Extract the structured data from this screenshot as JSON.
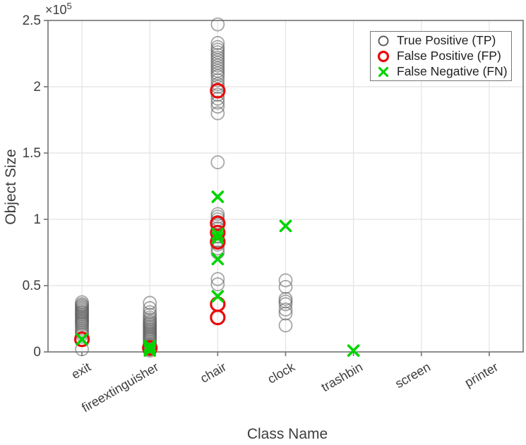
{
  "figure": {
    "background": "#ffffff",
    "exponent_base": "×10",
    "exponent_power": "5"
  },
  "chart_data": {
    "type": "scatter",
    "title": "",
    "xlabel": "Class Name",
    "ylabel": "Object Size",
    "y_axis_exponent_label": "×10^5",
    "ylim": [
      0,
      250000
    ],
    "y_tick_values": [
      0,
      50000,
      100000,
      150000,
      200000,
      250000
    ],
    "y_tick_labels": [
      "0",
      "0.5",
      "1",
      "1.5",
      "2",
      "2.5"
    ],
    "grid": true,
    "legend_position": "top-right",
    "axis_color": "#7a7a7a",
    "grid_color": "#e2e2e2",
    "tick_label_color": "#3d3d3d",
    "categories": [
      "exit",
      "fireextinguisher",
      "chair",
      "clock",
      "trashbin",
      "screen",
      "printer"
    ],
    "series": [
      {
        "name": "True Positive (TP)",
        "marker": "circle-open",
        "color": "#5f5f5f",
        "opacity": 0.55,
        "radius": 9,
        "stroke_width": 1.8,
        "values_by_category": [
          [
            37500,
            36000,
            35000,
            34000,
            33000,
            32000,
            31000,
            30000,
            29500,
            28500,
            27500,
            26500,
            25500,
            24500,
            23500,
            22500,
            21500,
            20500,
            19000,
            17500,
            16000,
            14500,
            13000,
            2000
          ],
          [
            37000,
            33000,
            30000,
            28000,
            26000,
            24500,
            23000,
            22000,
            21000,
            20000,
            19000,
            18000,
            17000,
            16000,
            15000,
            14000,
            13000,
            12000,
            11000,
            10000,
            9000,
            7500,
            6000,
            5000,
            4000,
            3000,
            2000,
            1000
          ],
          [
            247000,
            233000,
            230000,
            228000,
            226000,
            224000,
            222000,
            220000,
            218000,
            216000,
            214000,
            212000,
            210000,
            208000,
            205000,
            202000,
            200000,
            197000,
            194000,
            191000,
            188000,
            185000,
            180000,
            143000,
            104000,
            102000,
            100000,
            98000,
            96000,
            93000,
            90000,
            87000,
            84000,
            81000,
            78000,
            75000,
            55000,
            51000
          ],
          [
            54000,
            49000,
            40000,
            38000,
            36000,
            32000,
            29000,
            20000
          ],
          [],
          [],
          []
        ]
      },
      {
        "name": "False Positive (FP)",
        "marker": "circle-open",
        "color": "#e80c0c",
        "opacity": 1,
        "radius": 9.5,
        "stroke_width": 3.2,
        "values_by_category": [
          [
            9500
          ],
          [
            3000
          ],
          [
            197000,
            97000,
            90000,
            83000,
            36000,
            26000
          ],
          [],
          [],
          [],
          []
        ]
      },
      {
        "name": "False Negative (FN)",
        "marker": "x",
        "color": "#00d400",
        "opacity": 1,
        "radius": 7,
        "stroke_width": 3.6,
        "values_by_category": [
          [
            9500
          ],
          [
            4500,
            2500,
            1000
          ],
          [
            117000,
            89000,
            86000,
            70000,
            42000
          ],
          [
            95000
          ],
          [
            1000
          ],
          [],
          []
        ]
      }
    ]
  }
}
